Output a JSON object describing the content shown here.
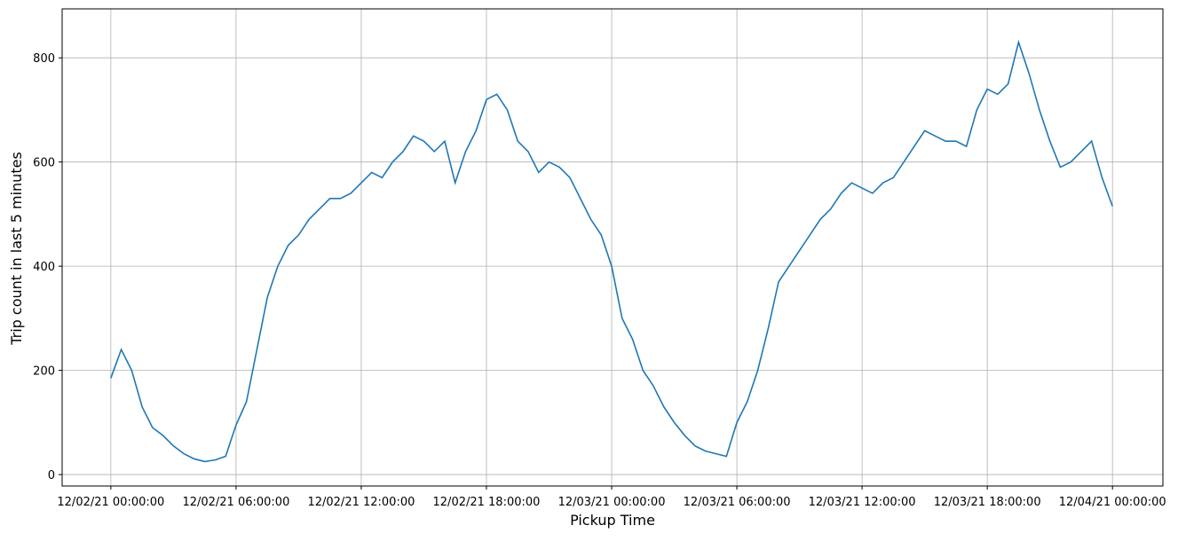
{
  "chart_data": {
    "type": "line",
    "xlabel": "Pickup Time",
    "ylabel": "Trip count in last 5 minutes",
    "grid": true,
    "xlim": [
      "12/01/21 21:40:00",
      "12/04/21 02:25:00"
    ],
    "ylim": [
      -22,
      894
    ],
    "xticks": [
      "12/02/21 00:00:00",
      "12/02/21 06:00:00",
      "12/02/21 12:00:00",
      "12/02/21 18:00:00",
      "12/03/21 00:00:00",
      "12/03/21 06:00:00",
      "12/03/21 12:00:00",
      "12/03/21 18:00:00",
      "12/04/21 00:00:00"
    ],
    "yticks": [
      0,
      200,
      400,
      600,
      800
    ],
    "x": [
      "12/02/21 00:00:00",
      "12/02/21 00:30:00",
      "12/02/21 01:00:00",
      "12/02/21 01:30:00",
      "12/02/21 02:00:00",
      "12/02/21 02:30:00",
      "12/02/21 03:00:00",
      "12/02/21 03:30:00",
      "12/02/21 04:00:00",
      "12/02/21 04:30:00",
      "12/02/21 05:00:00",
      "12/02/21 05:30:00",
      "12/02/21 06:00:00",
      "12/02/21 06:30:00",
      "12/02/21 07:00:00",
      "12/02/21 07:30:00",
      "12/02/21 08:00:00",
      "12/02/21 08:30:00",
      "12/02/21 09:00:00",
      "12/02/21 09:30:00",
      "12/02/21 10:00:00",
      "12/02/21 10:30:00",
      "12/02/21 11:00:00",
      "12/02/21 11:30:00",
      "12/02/21 12:00:00",
      "12/02/21 12:30:00",
      "12/02/21 13:00:00",
      "12/02/21 13:30:00",
      "12/02/21 14:00:00",
      "12/02/21 14:30:00",
      "12/02/21 15:00:00",
      "12/02/21 15:30:00",
      "12/02/21 16:00:00",
      "12/02/21 16:30:00",
      "12/02/21 17:00:00",
      "12/02/21 17:30:00",
      "12/02/21 18:00:00",
      "12/02/21 18:30:00",
      "12/02/21 19:00:00",
      "12/02/21 19:30:00",
      "12/02/21 20:00:00",
      "12/02/21 20:30:00",
      "12/02/21 21:00:00",
      "12/02/21 21:30:00",
      "12/02/21 22:00:00",
      "12/02/21 22:30:00",
      "12/02/21 23:00:00",
      "12/02/21 23:30:00",
      "12/03/21 00:00:00",
      "12/03/21 00:30:00",
      "12/03/21 01:00:00",
      "12/03/21 01:30:00",
      "12/03/21 02:00:00",
      "12/03/21 02:30:00",
      "12/03/21 03:00:00",
      "12/03/21 03:30:00",
      "12/03/21 04:00:00",
      "12/03/21 04:30:00",
      "12/03/21 05:00:00",
      "12/03/21 05:30:00",
      "12/03/21 06:00:00",
      "12/03/21 06:30:00",
      "12/03/21 07:00:00",
      "12/03/21 07:30:00",
      "12/03/21 08:00:00",
      "12/03/21 08:30:00",
      "12/03/21 09:00:00",
      "12/03/21 09:30:00",
      "12/03/21 10:00:00",
      "12/03/21 10:30:00",
      "12/03/21 11:00:00",
      "12/03/21 11:30:00",
      "12/03/21 12:00:00",
      "12/03/21 12:30:00",
      "12/03/21 13:00:00",
      "12/03/21 13:30:00",
      "12/03/21 14:00:00",
      "12/03/21 14:30:00",
      "12/03/21 15:00:00",
      "12/03/21 15:30:00",
      "12/03/21 16:00:00",
      "12/03/21 16:30:00",
      "12/03/21 17:00:00",
      "12/03/21 17:30:00",
      "12/03/21 18:00:00",
      "12/03/21 18:30:00",
      "12/03/21 19:00:00",
      "12/03/21 19:30:00",
      "12/03/21 20:00:00",
      "12/03/21 20:30:00",
      "12/03/21 21:00:00",
      "12/03/21 21:30:00",
      "12/03/21 22:00:00",
      "12/03/21 22:30:00",
      "12/03/21 23:00:00",
      "12/03/21 23:30:00",
      "12/04/21 00:00:00"
    ],
    "series": [
      {
        "color": "#1f77b4",
        "values": [
          185,
          240,
          200,
          130,
          90,
          75,
          55,
          40,
          30,
          25,
          28,
          35,
          95,
          140,
          240,
          340,
          400,
          440,
          460,
          490,
          510,
          530,
          530,
          540,
          560,
          580,
          570,
          600,
          620,
          650,
          640,
          620,
          640,
          560,
          620,
          660,
          720,
          730,
          700,
          640,
          620,
          580,
          600,
          590,
          570,
          530,
          490,
          460,
          400,
          300,
          260,
          200,
          170,
          130,
          100,
          75,
          55,
          45,
          40,
          35,
          100,
          140,
          200,
          280,
          370,
          400,
          430,
          460,
          490,
          510,
          540,
          560,
          550,
          540,
          560,
          570,
          600,
          630,
          660,
          650,
          640,
          640,
          630,
          700,
          740,
          730,
          750,
          830,
          770,
          700,
          640,
          590,
          600,
          620,
          640,
          570,
          515
        ]
      }
    ]
  }
}
